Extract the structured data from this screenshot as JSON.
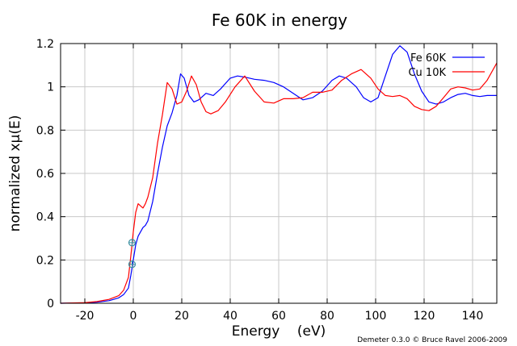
{
  "chart_data": {
    "type": "line",
    "title": "Fe 60K in energy",
    "xlabel": "Energy    (eV)",
    "ylabel": "normalized xμ(E)",
    "xlim": [
      -30,
      150
    ],
    "ylim": [
      0,
      1.2
    ],
    "xticks": [
      -20,
      0,
      20,
      40,
      60,
      80,
      100,
      120,
      140
    ],
    "yticks": [
      0,
      0.2,
      0.4,
      0.6,
      0.8,
      1,
      1.2
    ],
    "grid": true,
    "legend_position": "top-right",
    "credit": "Demeter 0.3.0 © Bruce Ravel 2006-2009",
    "markers": [
      {
        "x": -0.5,
        "y": 0.28,
        "color": "#3a8fa0"
      },
      {
        "x": -0.5,
        "y": 0.18,
        "color": "#3a8fa0"
      }
    ],
    "series": [
      {
        "name": "Fe 60K",
        "color": "#0000ff",
        "x": [
          -30,
          -20,
          -15,
          -10,
          -6,
          -4,
          -2,
          -1,
          0,
          1,
          2,
          3,
          4,
          5,
          6,
          8,
          10,
          12,
          14,
          16,
          18,
          19.5,
          21,
          23,
          25,
          27,
          30,
          33,
          36,
          40,
          43,
          46,
          50,
          54,
          58,
          62,
          66,
          70,
          74,
          78,
          82,
          85,
          88,
          92,
          95,
          98,
          101,
          104,
          107,
          110,
          113,
          116,
          119,
          122,
          125,
          128,
          131,
          134,
          137,
          140,
          143,
          146,
          150
        ],
        "y": [
          0,
          0.002,
          0.005,
          0.012,
          0.025,
          0.04,
          0.07,
          0.13,
          0.2,
          0.27,
          0.31,
          0.33,
          0.35,
          0.36,
          0.38,
          0.47,
          0.6,
          0.72,
          0.82,
          0.88,
          0.96,
          1.06,
          1.04,
          0.96,
          0.93,
          0.94,
          0.97,
          0.96,
          0.99,
          1.04,
          1.05,
          1.045,
          1.035,
          1.03,
          1.02,
          1.0,
          0.97,
          0.94,
          0.95,
          0.98,
          1.03,
          1.05,
          1.04,
          1.0,
          0.95,
          0.93,
          0.95,
          1.05,
          1.15,
          1.19,
          1.16,
          1.06,
          0.98,
          0.93,
          0.92,
          0.93,
          0.95,
          0.965,
          0.97,
          0.96,
          0.955,
          0.96,
          0.96
        ]
      },
      {
        "name": "Cu 10K",
        "color": "#ff0000",
        "x": [
          -30,
          -20,
          -15,
          -10,
          -6,
          -4,
          -2,
          -1,
          0,
          1,
          2,
          3,
          4,
          5,
          6,
          8,
          10,
          12,
          14,
          16,
          18,
          20,
          22,
          24,
          26,
          28,
          30,
          32,
          35,
          38,
          42,
          46,
          50,
          54,
          58,
          62,
          66,
          70,
          74,
          78,
          82,
          86,
          90,
          94,
          98,
          101,
          104,
          107,
          110,
          113,
          116,
          119,
          122,
          125,
          128,
          131,
          134,
          137,
          140,
          143,
          146,
          150
        ],
        "y": [
          0,
          0.003,
          0.008,
          0.018,
          0.035,
          0.06,
          0.12,
          0.22,
          0.33,
          0.42,
          0.46,
          0.45,
          0.44,
          0.46,
          0.49,
          0.58,
          0.74,
          0.87,
          1.02,
          0.99,
          0.92,
          0.93,
          0.98,
          1.05,
          1.01,
          0.93,
          0.885,
          0.875,
          0.89,
          0.93,
          1.0,
          1.05,
          0.98,
          0.93,
          0.925,
          0.945,
          0.945,
          0.95,
          0.975,
          0.975,
          0.985,
          1.03,
          1.06,
          1.08,
          1.04,
          0.99,
          0.96,
          0.955,
          0.96,
          0.945,
          0.91,
          0.895,
          0.89,
          0.91,
          0.95,
          0.99,
          1.0,
          0.995,
          0.985,
          0.99,
          1.03,
          1.11
        ]
      }
    ]
  }
}
